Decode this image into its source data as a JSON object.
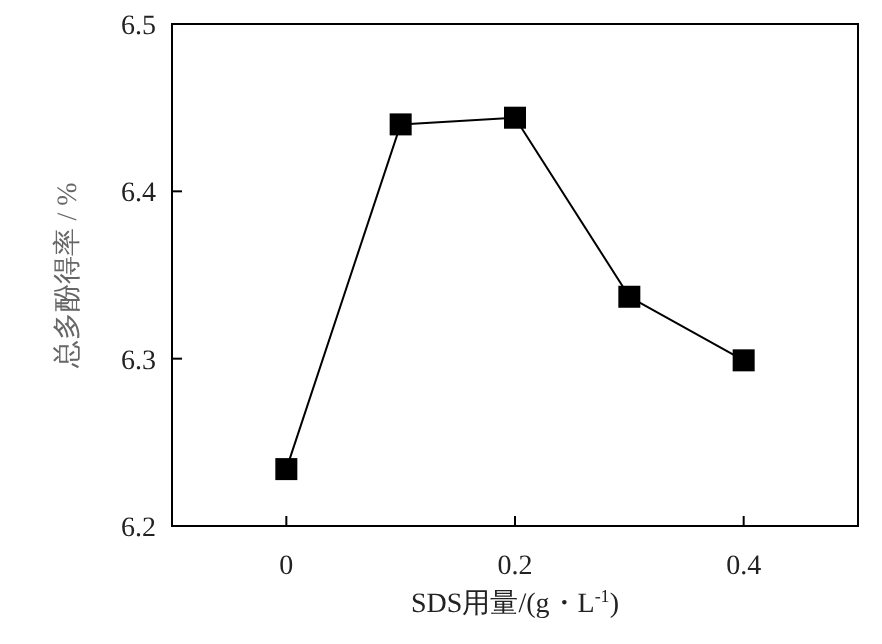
{
  "chart_data": {
    "type": "line",
    "xlabel": "SDS用量/(g・L$^{-1}$)",
    "ylabel": "总多酚得率 / %",
    "x": [
      0,
      0.1,
      0.2,
      0.3,
      0.4
    ],
    "series": [
      {
        "color": "#000000",
        "values": [
          6.234,
          6.44,
          6.444,
          6.337,
          6.299
        ]
      }
    ],
    "xlim": [
      -0.1,
      0.5
    ],
    "xticks": [
      0,
      0.2,
      0.4
    ],
    "ylim": [
      6.2,
      6.5
    ],
    "yticks": [
      6.2,
      6.3,
      6.4,
      6.5
    ],
    "marker": "square",
    "line_style": "solid",
    "grid": false
  }
}
